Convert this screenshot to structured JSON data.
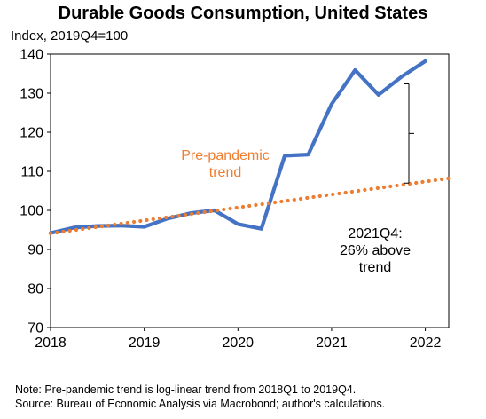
{
  "chart_data": {
    "type": "line",
    "title": "Durable Goods Consumption, United States",
    "subtitle": "Index, 2019Q4=100",
    "xlabel": "",
    "ylabel": "",
    "xlim": [
      2018,
      2022.25
    ],
    "ylim": [
      70,
      140
    ],
    "x_ticks": [
      2018,
      2019,
      2020,
      2021,
      2022
    ],
    "y_ticks": [
      70,
      80,
      90,
      100,
      110,
      120,
      130,
      140
    ],
    "grid": false,
    "series": [
      {
        "name": "",
        "color": "#4472C4",
        "style": "solid",
        "x": [
          2018.0,
          2018.25,
          2018.5,
          2018.75,
          2019.0,
          2019.25,
          2019.5,
          2019.75,
          2020.0,
          2020.25,
          2020.5,
          2020.75,
          2021.0,
          2021.25,
          2021.5,
          2021.75,
          2022.0
        ],
        "y": [
          94.2,
          95.6,
          96.0,
          96.1,
          95.8,
          97.9,
          99.3,
          100.0,
          96.5,
          95.3,
          114.0,
          114.3,
          127.2,
          135.9,
          129.6,
          134.3,
          138.2
        ]
      },
      {
        "name": "Pre-pandemic trend",
        "color": "#ED7D31",
        "style": "dotted",
        "x": [
          2018.0,
          2022.25
        ],
        "y": [
          94.1,
          108.2
        ]
      }
    ],
    "annotations": [
      {
        "id": "trend",
        "lines": [
          "Pre-pandemic",
          "trend"
        ],
        "color": "#ED7D31"
      },
      {
        "id": "gap",
        "lines": [
          "2021Q4:",
          "26% above",
          "trend"
        ],
        "color": "#000000"
      }
    ]
  },
  "notes": {
    "line1": "Note: Pre-pandemic trend is log-linear trend from 2018Q1 to 2019Q4.",
    "line2": "Source: Bureau of Economic Analysis via Macrobond; author's calculations."
  }
}
